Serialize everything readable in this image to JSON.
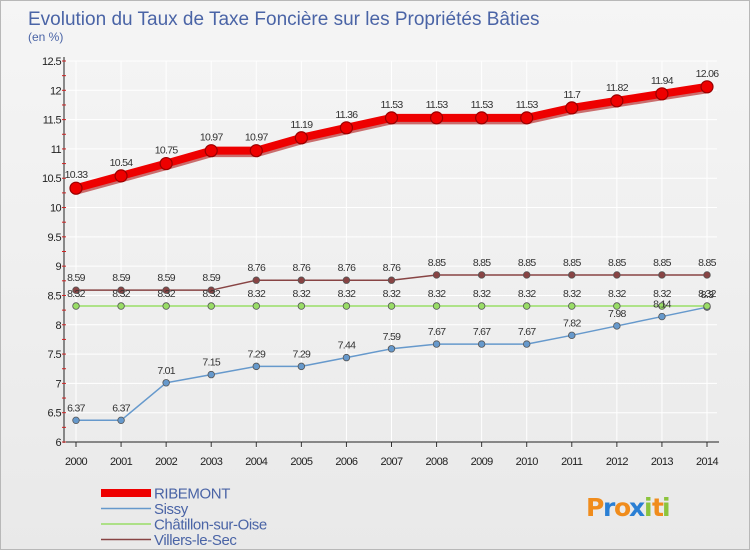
{
  "chart_data": {
    "type": "line",
    "title": "Evolution du Taux de Taxe Foncière sur les Propriétés Bâties",
    "subtitle": "(en %)",
    "xlabel": "",
    "ylabel": "",
    "x": [
      "2000",
      "2001",
      "2002",
      "2003",
      "2004",
      "2005",
      "2006",
      "2007",
      "2008",
      "2009",
      "2010",
      "2011",
      "2012",
      "2013",
      "2014"
    ],
    "ylim": [
      6,
      12.5
    ],
    "yticks": [
      "6",
      "6.5",
      "7",
      "7.5",
      "8",
      "8.5",
      "9",
      "9.5",
      "10",
      "10.5",
      "11",
      "11.5",
      "12",
      "12.5"
    ],
    "grid": true,
    "legend_position": "bottom-left",
    "series": [
      {
        "name": "RIBEMONT",
        "color": "#ee0000",
        "emphasis": "thick",
        "values": [
          10.33,
          10.54,
          10.75,
          10.97,
          10.97,
          11.19,
          11.36,
          11.53,
          11.53,
          11.53,
          11.53,
          11.7,
          11.82,
          11.94,
          12.06
        ],
        "labels": [
          "10.33",
          "10.54",
          "10.75",
          "10.97",
          "10.97",
          "11.19",
          "11.36",
          "11.53",
          "11.53",
          "11.53",
          "11.53",
          "11.7",
          "11.82",
          "11.94",
          "12.06"
        ]
      },
      {
        "name": "Sissy",
        "color": "#6699cc",
        "emphasis": "normal",
        "values": [
          6.37,
          6.37,
          7.01,
          7.15,
          7.29,
          7.29,
          7.44,
          7.59,
          7.67,
          7.67,
          7.67,
          7.82,
          7.98,
          8.14,
          8.3
        ],
        "labels": [
          "6.37",
          "6.37",
          "7.01",
          "7.15",
          "7.29",
          "7.29",
          "7.44",
          "7.59",
          "7.67",
          "7.67",
          "7.67",
          "7.82",
          "7.98",
          "8.14",
          "8.3"
        ]
      },
      {
        "name": "Châtillon-sur-Oise",
        "color": "#99dd66",
        "emphasis": "normal",
        "values": [
          8.32,
          8.32,
          8.32,
          8.32,
          8.32,
          8.32,
          8.32,
          8.32,
          8.32,
          8.32,
          8.32,
          8.32,
          8.32,
          8.32,
          8.32
        ],
        "labels": [
          "8.32",
          "8.32",
          "8.32",
          "8.32",
          "8.32",
          "8.32",
          "8.32",
          "8.32",
          "8.32",
          "8.32",
          "8.32",
          "8.32",
          "8.32",
          "8.32",
          "8.32"
        ]
      },
      {
        "name": "Villers-le-Sec",
        "color": "#884444",
        "emphasis": "normal",
        "values": [
          8.59,
          8.59,
          8.59,
          8.59,
          8.76,
          8.76,
          8.76,
          8.76,
          8.85,
          8.85,
          8.85,
          8.85,
          8.85,
          8.85,
          8.85
        ],
        "labels": [
          "8.59",
          "8.59",
          "8.59",
          "8.59",
          "8.76",
          "8.76",
          "8.76",
          "8.76",
          "8.85",
          "8.85",
          "8.85",
          "8.85",
          "8.85",
          "8.85",
          "8.85"
        ]
      }
    ]
  },
  "brand": {
    "logo_letters": [
      "P",
      "r",
      "o",
      "x",
      "i",
      "t",
      "i"
    ],
    "logo_colors": [
      "#f08c1c",
      "#2a7fd4",
      "#f08c1c",
      "#2a7fd4",
      "#8cc43c",
      "#f08c1c",
      "#8cc43c"
    ]
  }
}
